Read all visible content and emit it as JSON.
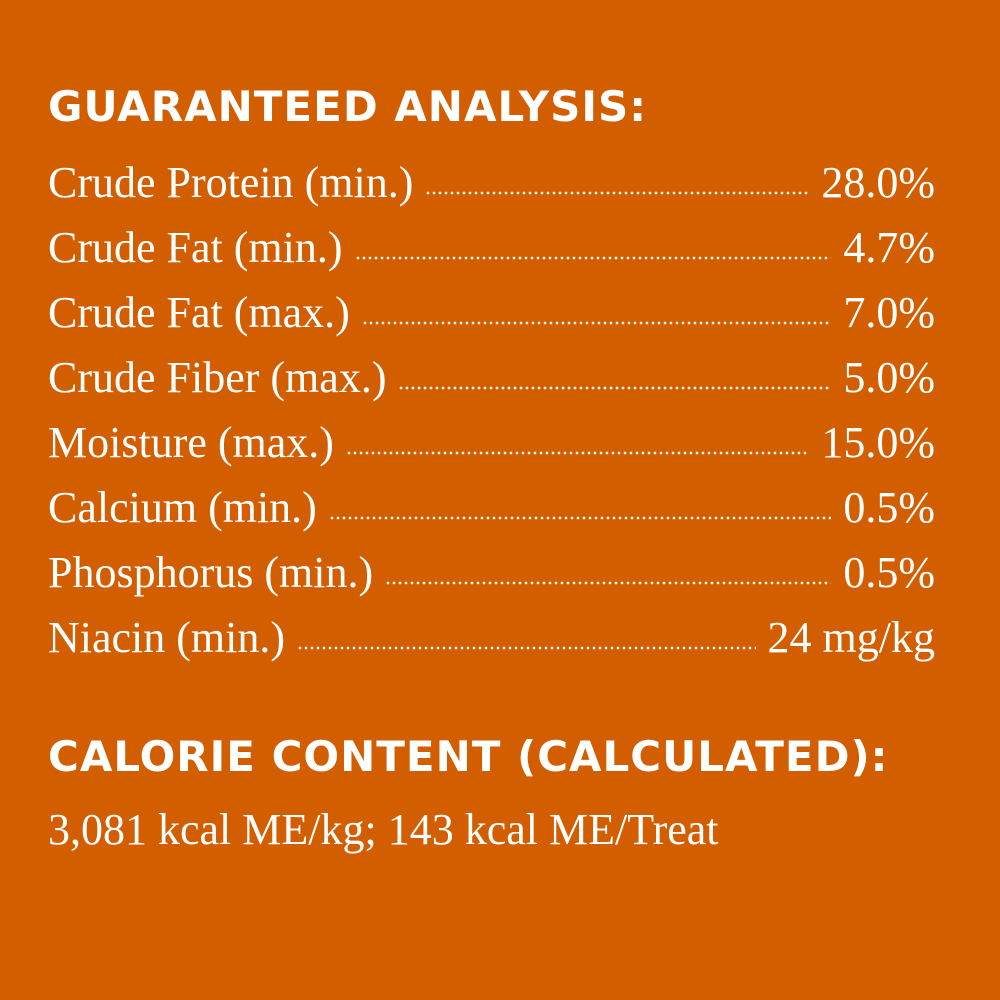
{
  "background_color": "#D35E00",
  "guaranteed_analysis": {
    "heading": "GUARANTEED ANALYSIS:",
    "rows": [
      {
        "label": "Crude Protein (min.)",
        "value": "28.0%"
      },
      {
        "label": "Crude Fat (min.)",
        "value": "4.7%"
      },
      {
        "label": "Crude Fat (max.)",
        "value": "7.0%"
      },
      {
        "label": "Crude Fiber (max.)",
        "value": "5.0%"
      },
      {
        "label": "Moisture (max.)",
        "value": "15.0%"
      },
      {
        "label": "Calcium (min.)",
        "value": "0.5%"
      },
      {
        "label": "Phosphorus (min.)",
        "value": "0.5%"
      },
      {
        "label": "Niacin (min.)",
        "value": "24 mg/kg"
      }
    ]
  },
  "calorie_content": {
    "heading": "CALORIE CONTENT (CALCULATED):",
    "text": "3,081 kcal ME/kg; 143 kcal ME/Treat"
  }
}
